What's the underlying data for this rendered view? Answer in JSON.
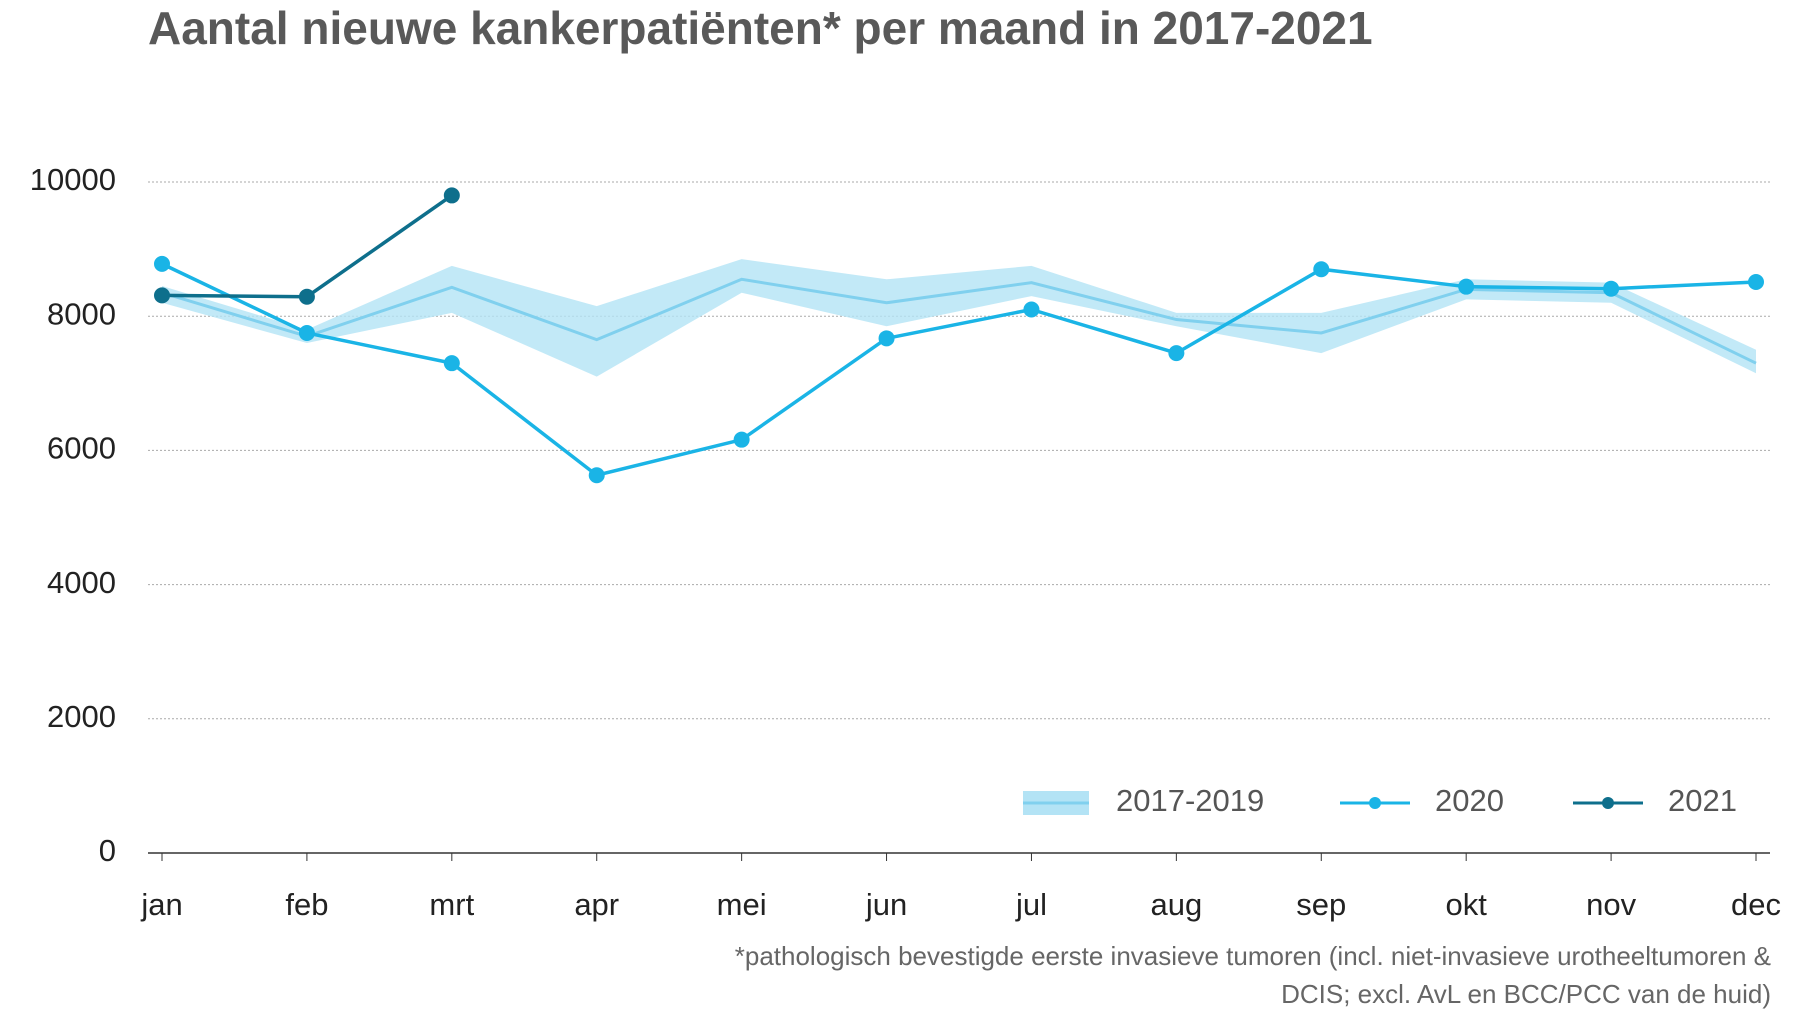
{
  "chart_data": {
    "type": "line",
    "title": "Aantal nieuwe kankerpatiënten* per maand in 2017-2021",
    "categories": [
      "jan",
      "feb",
      "mrt",
      "apr",
      "mei",
      "jun",
      "jul",
      "aug",
      "sep",
      "okt",
      "nov",
      "dec"
    ],
    "ylim": [
      0,
      10000
    ],
    "yticks": [
      0,
      2000,
      4000,
      6000,
      8000,
      10000
    ],
    "grid": true,
    "legend": "bottom-right",
    "series": [
      {
        "name": "2017-2019",
        "kind": "band",
        "color": "#80d0ee",
        "band_color": "#b3e3f5",
        "values": [
          8350,
          7700,
          8430,
          7650,
          8550,
          8200,
          8500,
          7950,
          7750,
          8400,
          8350,
          7300
        ],
        "low": [
          8200,
          7600,
          8050,
          7100,
          8350,
          7850,
          8300,
          7850,
          7450,
          8250,
          8200,
          7150
        ],
        "high": [
          8450,
          7800,
          8750,
          8150,
          8850,
          8550,
          8750,
          8050,
          8050,
          8550,
          8500,
          7500
        ]
      },
      {
        "name": "2020",
        "color": "#1ab4e6",
        "values": [
          8780,
          7750,
          7300,
          5630,
          6160,
          7670,
          8100,
          7450,
          8700,
          8440,
          8410,
          8510
        ]
      },
      {
        "name": "2021",
        "color": "#0e6f8c",
        "values": [
          8310,
          8290,
          9800,
          null,
          null,
          null,
          null,
          null,
          null,
          null,
          null,
          null
        ]
      }
    ],
    "note": [
      "*pathologisch bevestigde eerste invasieve tumoren (incl. niet-invasieve urotheeltumoren &",
      "DCIS; excl. AvL en BCC/PCC van de huid)"
    ]
  }
}
